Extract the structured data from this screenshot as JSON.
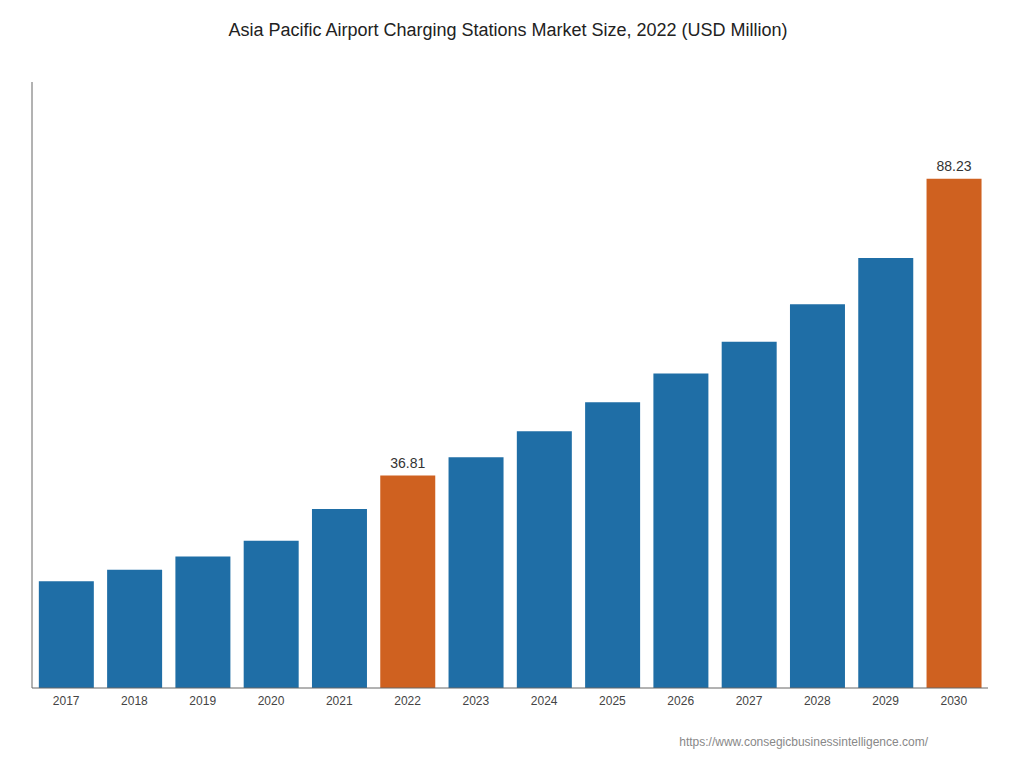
{
  "chart_data": {
    "type": "bar",
    "title": "Asia Pacific Airport Charging Stations Market Size, 2022 (USD Million)",
    "categories": [
      "2017",
      "2018",
      "2019",
      "2020",
      "2021",
      "2022",
      "2023",
      "2024",
      "2025",
      "2026",
      "2027",
      "2028",
      "2029",
      "2030"
    ],
    "values": [
      18.5,
      20.5,
      22.8,
      25.5,
      31.0,
      36.81,
      40.0,
      44.5,
      49.5,
      54.5,
      60.0,
      66.5,
      74.5,
      88.23
    ],
    "value_labels": [
      null,
      null,
      null,
      null,
      null,
      "36.81",
      null,
      null,
      null,
      null,
      null,
      null,
      null,
      "88.23"
    ],
    "colors": [
      "#1F6EA6",
      "#1F6EA6",
      "#1F6EA6",
      "#1F6EA6",
      "#1F6EA6",
      "#CF6120",
      "#1F6EA6",
      "#1F6EA6",
      "#1F6EA6",
      "#1F6EA6",
      "#1F6EA6",
      "#1F6EA6",
      "#1F6EA6",
      "#CF6120"
    ],
    "ylim": [
      0,
      105
    ],
    "tick_labels": "x",
    "grid": false,
    "annotation": "https://www.consegicbusinessintelligence.com/"
  }
}
